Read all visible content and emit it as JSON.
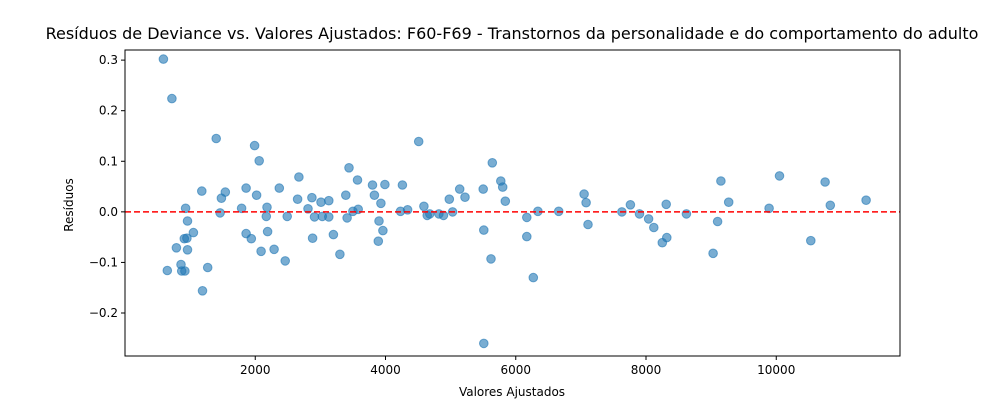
{
  "chart_data": {
    "type": "scatter",
    "title": "Resíduos de Deviance vs. Valores Ajustados: F60-F69 - Transtornos da personalidade e do comportamento do adulto",
    "xlabel": "Valores Ajustados",
    "ylabel": "Resíduos",
    "xlim": [
      0,
      11900
    ],
    "ylim": [
      -0.285,
      0.32
    ],
    "xticks": [
      2000,
      4000,
      6000,
      8000,
      10000
    ],
    "xtick_labels": [
      "2000",
      "4000",
      "6000",
      "8000",
      "10000"
    ],
    "yticks": [
      -0.2,
      -0.1,
      0.0,
      0.1,
      0.2,
      0.3
    ],
    "ytick_labels": [
      "−0.2",
      "−0.1",
      "0.0",
      "0.1",
      "0.2",
      "0.3"
    ],
    "grid": false,
    "reference_line": {
      "y": 0,
      "style": "dashed",
      "color": "#ff0000"
    },
    "marker_color": "#1f77b4",
    "points": [
      [
        590,
        0.302
      ],
      [
        720,
        0.224
      ],
      [
        650,
        -0.116
      ],
      [
        790,
        -0.071
      ],
      [
        860,
        -0.104
      ],
      [
        870,
        -0.117
      ],
      [
        910,
        -0.053
      ],
      [
        920,
        -0.117
      ],
      [
        930,
        0.007
      ],
      [
        950,
        -0.052
      ],
      [
        960,
        -0.075
      ],
      [
        960,
        -0.018
      ],
      [
        1050,
        -0.041
      ],
      [
        1180,
        0.041
      ],
      [
        1190,
        -0.156
      ],
      [
        1270,
        -0.11
      ],
      [
        1400,
        0.145
      ],
      [
        1460,
        -0.002
      ],
      [
        1480,
        0.027
      ],
      [
        1540,
        0.039
      ],
      [
        1790,
        0.007
      ],
      [
        1860,
        0.047
      ],
      [
        1860,
        -0.043
      ],
      [
        1940,
        -0.053
      ],
      [
        1990,
        0.131
      ],
      [
        2020,
        0.033
      ],
      [
        2060,
        0.101
      ],
      [
        2090,
        -0.078
      ],
      [
        2170,
        -0.009
      ],
      [
        2180,
        0.009
      ],
      [
        2190,
        -0.039
      ],
      [
        2290,
        -0.074
      ],
      [
        2370,
        0.047
      ],
      [
        2460,
        -0.097
      ],
      [
        2490,
        -0.009
      ],
      [
        2650,
        0.025
      ],
      [
        2670,
        0.069
      ],
      [
        2810,
        0.006
      ],
      [
        2870,
        0.028
      ],
      [
        2880,
        -0.052
      ],
      [
        2910,
        -0.01
      ],
      [
        3010,
        0.019
      ],
      [
        3030,
        -0.009
      ],
      [
        3130,
        -0.01
      ],
      [
        3130,
        0.022
      ],
      [
        3200,
        -0.045
      ],
      [
        3300,
        -0.084
      ],
      [
        3390,
        0.033
      ],
      [
        3410,
        -0.012
      ],
      [
        3440,
        0.087
      ],
      [
        3500,
        0.001
      ],
      [
        3570,
        0.063
      ],
      [
        3580,
        0.005
      ],
      [
        3800,
        0.053
      ],
      [
        3830,
        0.033
      ],
      [
        3890,
        -0.058
      ],
      [
        3900,
        -0.018
      ],
      [
        3930,
        0.017
      ],
      [
        3960,
        -0.037
      ],
      [
        3990,
        0.054
      ],
      [
        4230,
        0.001
      ],
      [
        4260,
        0.053
      ],
      [
        4340,
        0.004
      ],
      [
        4510,
        0.139
      ],
      [
        4590,
        0.011
      ],
      [
        4640,
        -0.007
      ],
      [
        4680,
        -0.004
      ],
      [
        4820,
        -0.004
      ],
      [
        4890,
        -0.007
      ],
      [
        4980,
        0.025
      ],
      [
        5030,
        0.0
      ],
      [
        5140,
        0.045
      ],
      [
        5220,
        0.029
      ],
      [
        5500,
        0.045
      ],
      [
        5510,
        -0.036
      ],
      [
        5510,
        -0.26
      ],
      [
        5620,
        -0.093
      ],
      [
        5640,
        0.097
      ],
      [
        5770,
        0.061
      ],
      [
        5800,
        0.049
      ],
      [
        5840,
        0.021
      ],
      [
        6170,
        -0.049
      ],
      [
        6170,
        -0.011
      ],
      [
        6270,
        -0.13
      ],
      [
        6340,
        0.001
      ],
      [
        6660,
        0.001
      ],
      [
        7050,
        0.035
      ],
      [
        7080,
        0.018
      ],
      [
        7110,
        -0.025
      ],
      [
        7630,
        0.0
      ],
      [
        7760,
        0.014
      ],
      [
        7900,
        -0.004
      ],
      [
        8040,
        -0.014
      ],
      [
        8120,
        -0.031
      ],
      [
        8250,
        -0.061
      ],
      [
        8310,
        0.015
      ],
      [
        8320,
        -0.051
      ],
      [
        8620,
        -0.004
      ],
      [
        9030,
        -0.082
      ],
      [
        9100,
        -0.019
      ],
      [
        9150,
        0.061
      ],
      [
        9270,
        0.019
      ],
      [
        9890,
        0.007
      ],
      [
        10050,
        0.071
      ],
      [
        10530,
        -0.057
      ],
      [
        10750,
        0.059
      ],
      [
        10830,
        0.013
      ],
      [
        11380,
        0.023
      ]
    ]
  }
}
